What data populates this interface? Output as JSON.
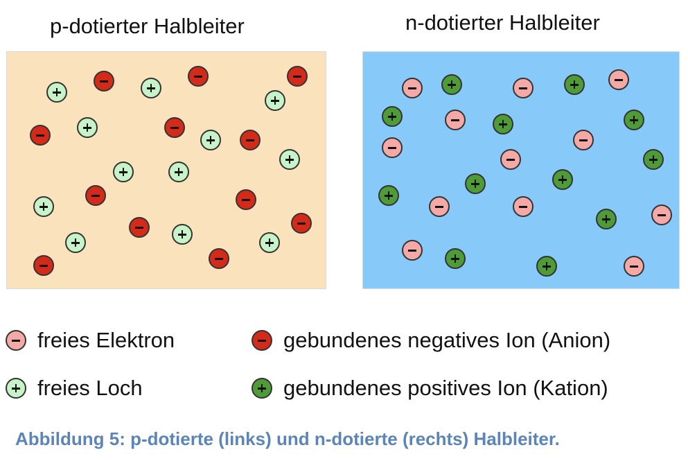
{
  "panels": {
    "p": {
      "title": "p-dotierter Halbleiter",
      "background": "#fae2bd"
    },
    "n": {
      "title": "n-dotierter Halbleiter",
      "background": "#87c9f8"
    }
  },
  "legend": {
    "free_electron": {
      "label": "freies Elektron",
      "symbol": "minus",
      "color": "#f5a9a6"
    },
    "bound_negative_ion": {
      "label": "gebundenes negatives Ion (Anion)",
      "symbol": "minus",
      "color": "#d42a1a"
    },
    "free_hole": {
      "label": "freies Loch",
      "symbol": "plus",
      "color": "#c6f3c8"
    },
    "bound_positive_ion": {
      "label": "gebundenes positives Ion (Kation)",
      "symbol": "plus",
      "color": "#4f9b38"
    }
  },
  "caption": "Abbildung 5: p-dotierte (links) und n-dotierte (rechts) Halbleiter."
}
